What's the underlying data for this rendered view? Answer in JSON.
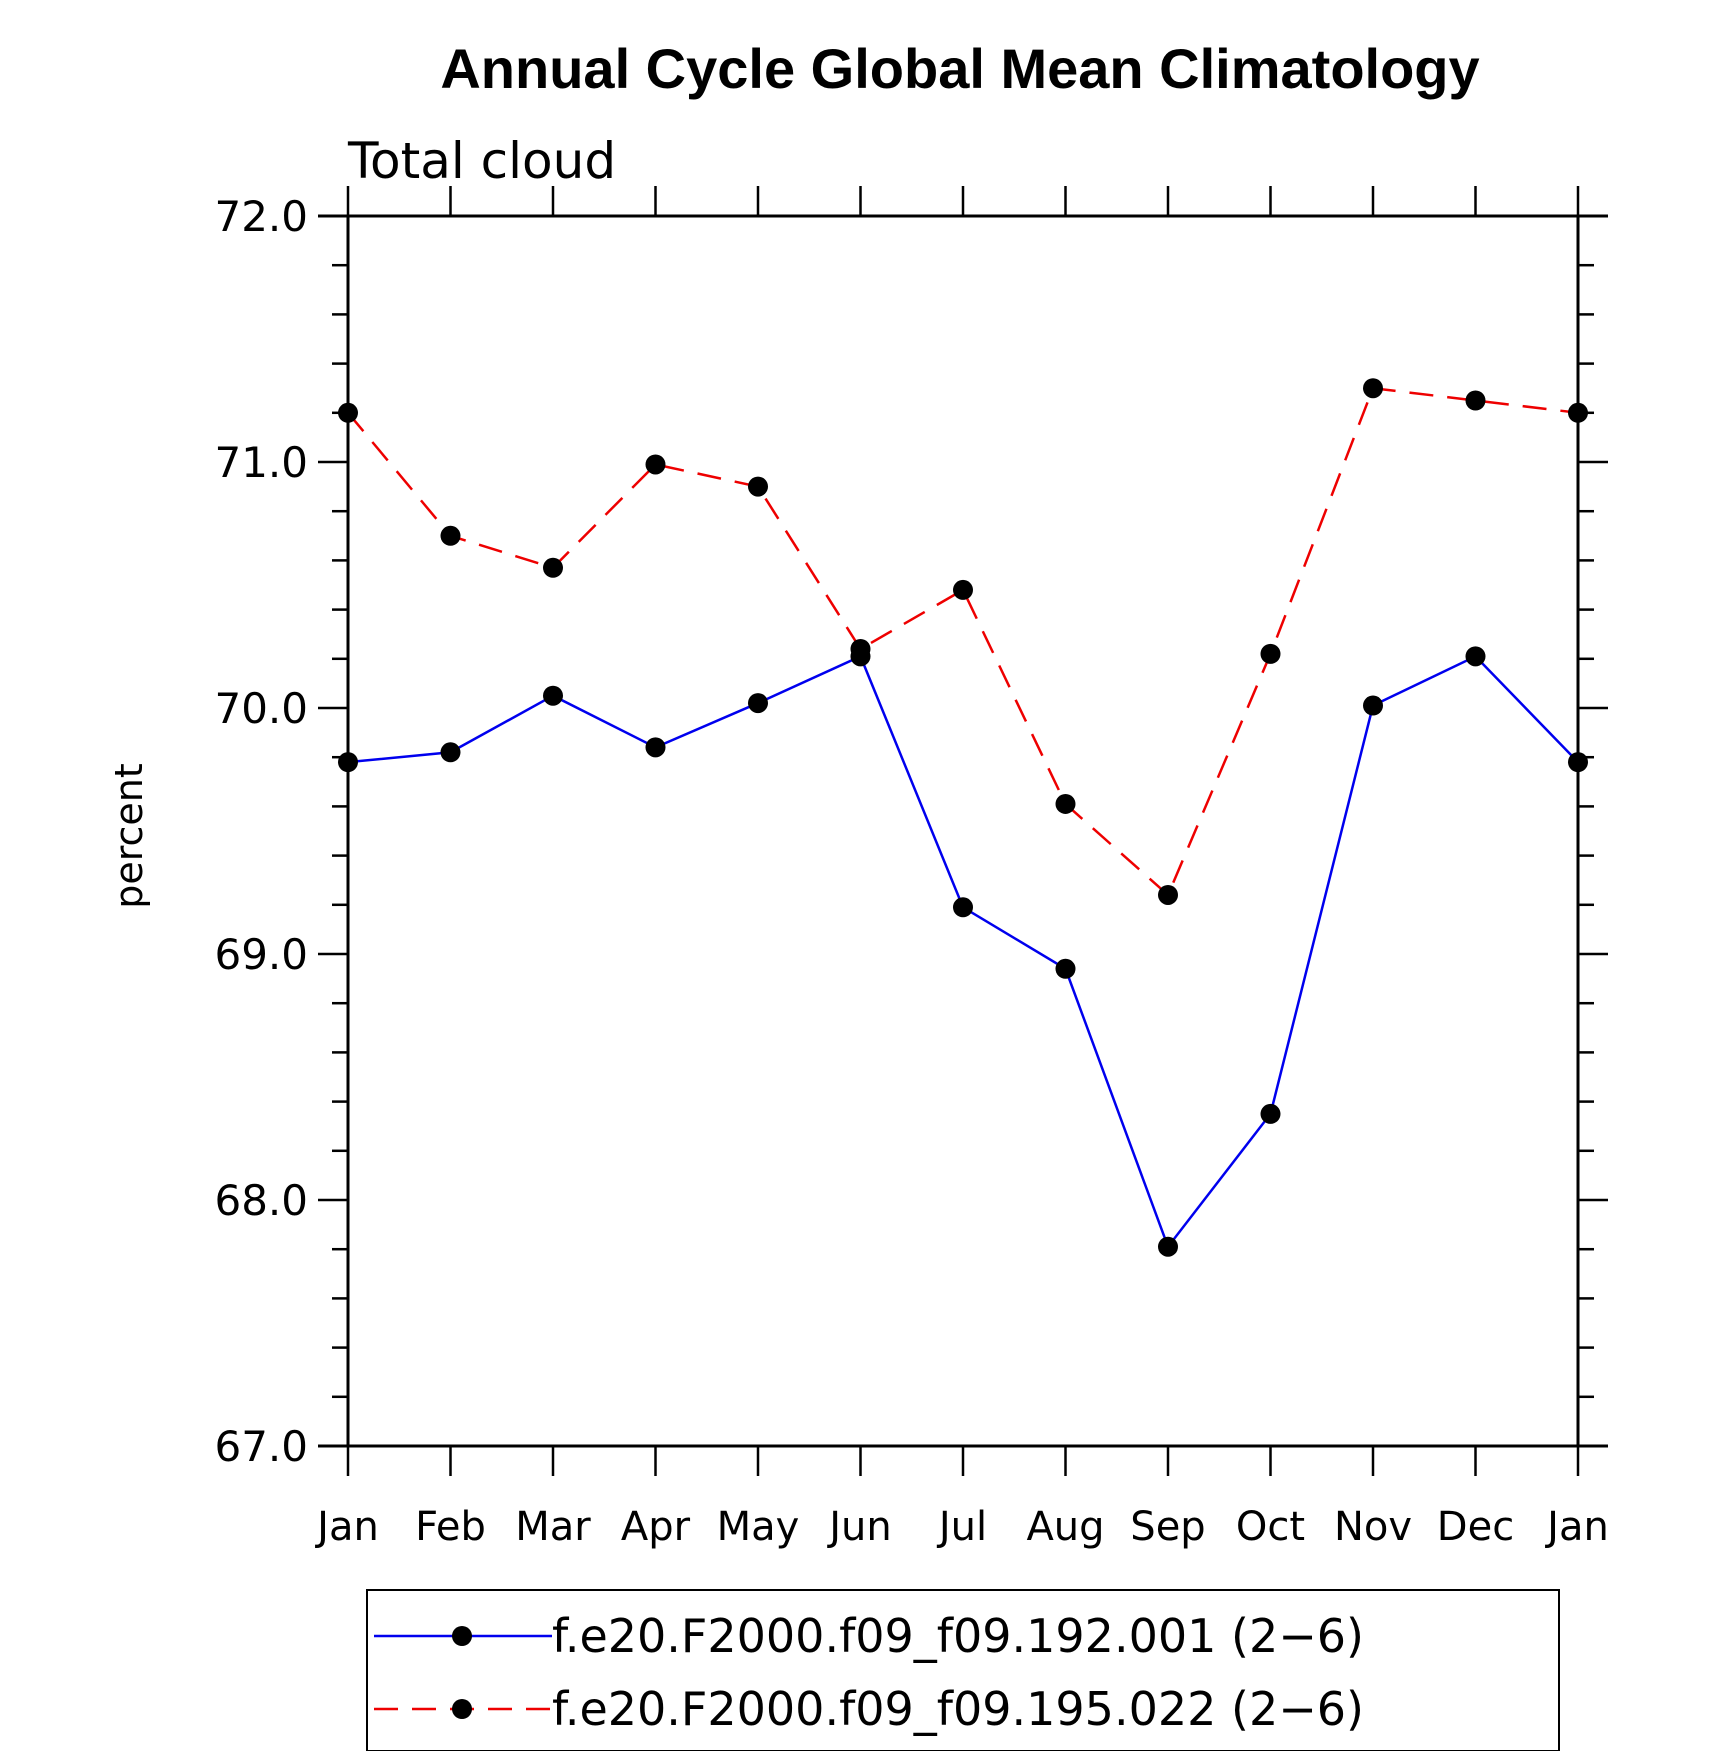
{
  "chart_data": {
    "type": "line",
    "title": "Annual Cycle Global Mean Climatology",
    "subtitle": "Total cloud",
    "xlabel": "",
    "ylabel": "percent",
    "categories": [
      "Jan",
      "Feb",
      "Mar",
      "Apr",
      "May",
      "Jun",
      "Jul",
      "Aug",
      "Sep",
      "Oct",
      "Nov",
      "Dec",
      "Jan"
    ],
    "ylim": [
      67.0,
      72.0
    ],
    "yticks": [
      67.0,
      68.0,
      69.0,
      70.0,
      71.0,
      72.0
    ],
    "ytick_labels": [
      "67.0",
      "68.0",
      "69.0",
      "70.0",
      "71.0",
      "72.0"
    ],
    "grid": false,
    "legend_position": "bottom",
    "series": [
      {
        "name": "f.e20.F2000.f09_f09.192.001 (2−6)",
        "color": "#0000ee",
        "dash": "solid",
        "values": [
          69.78,
          69.82,
          70.05,
          69.84,
          70.02,
          70.21,
          69.19,
          68.94,
          67.81,
          68.35,
          70.01,
          70.21,
          69.78
        ]
      },
      {
        "name": "f.e20.F2000.f09_f09.195.022 (2−6)",
        "color": "#ee0000",
        "dash": "dashed",
        "values": [
          71.2,
          70.7,
          70.57,
          70.99,
          70.9,
          70.24,
          70.48,
          69.61,
          69.24,
          70.22,
          71.3,
          71.25,
          71.2
        ]
      }
    ]
  }
}
